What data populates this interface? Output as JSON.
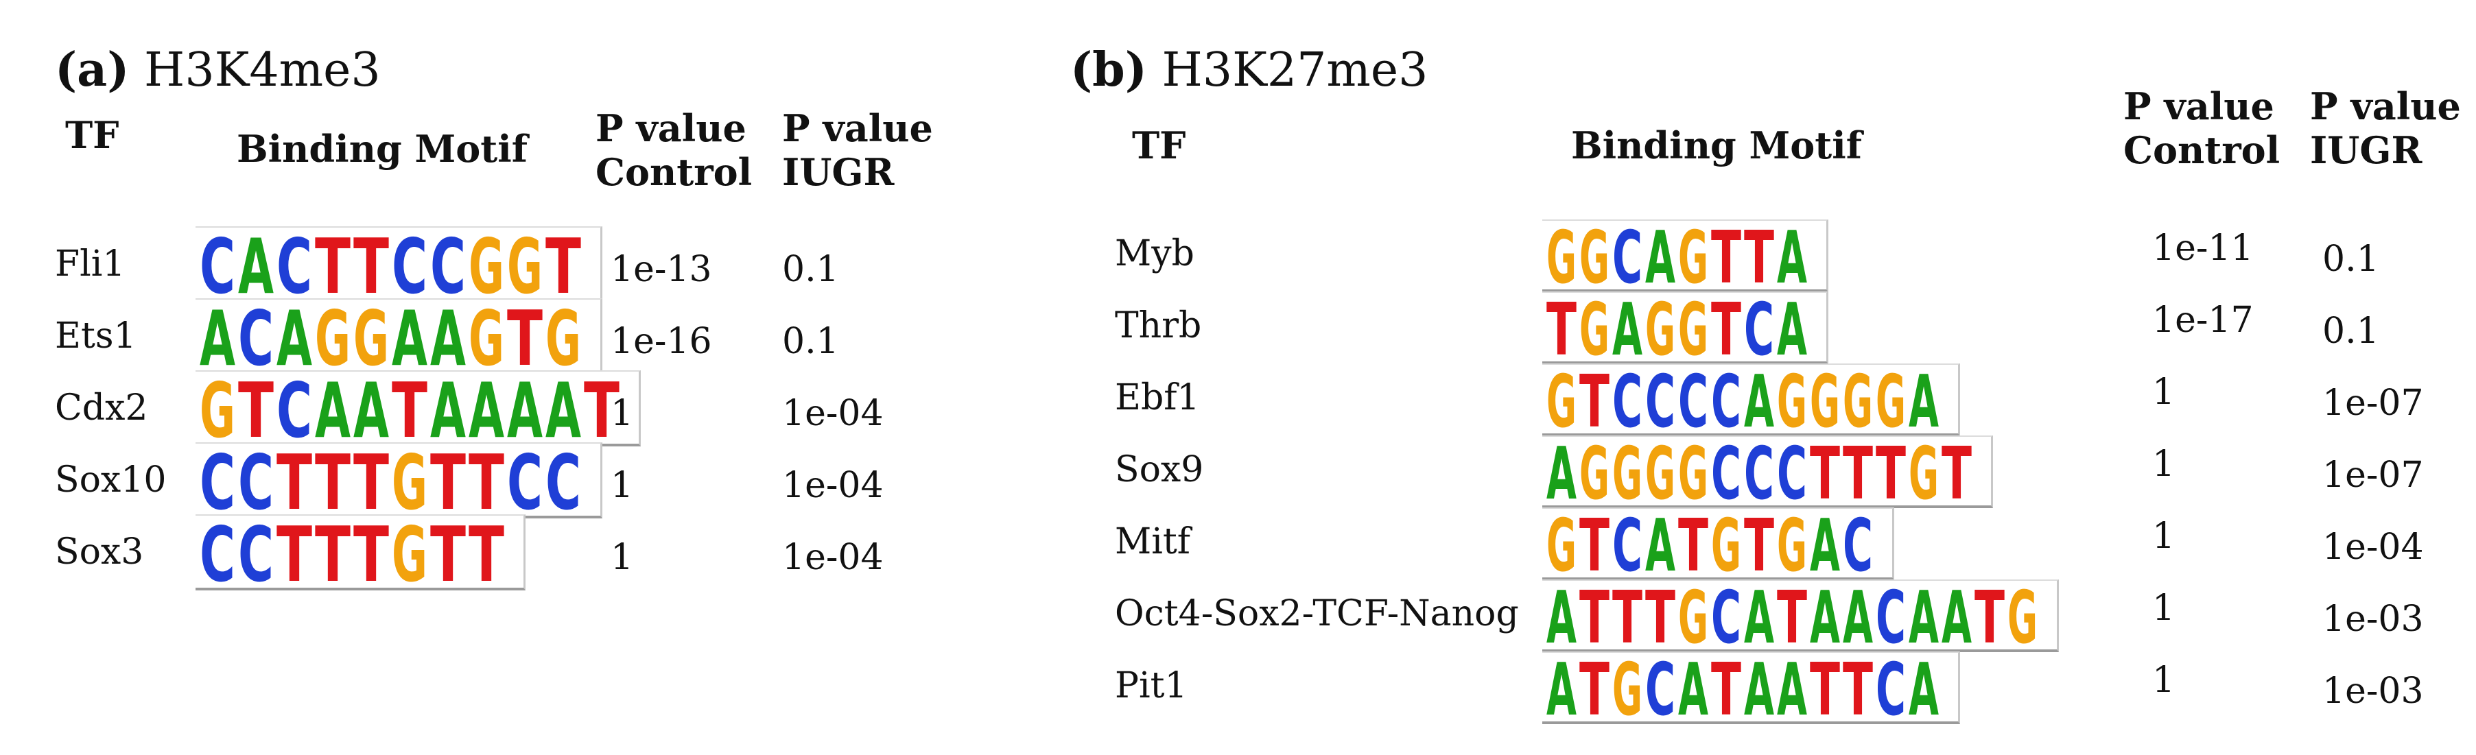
{
  "panel_a": {
    "label": "(a)",
    "title": "H3K4me3",
    "headers": {
      "tf": "TF",
      "motif": "Binding Motif",
      "p_control": [
        "P value",
        "Control"
      ],
      "p_iugr": [
        "P value",
        "IUGR"
      ]
    },
    "rows": [
      {
        "tf": "Fli1",
        "motif": "CACTTCCGGT",
        "p_control": "1e-13",
        "p_iugr": "0.1"
      },
      {
        "tf": "Ets1",
        "motif": "ACAGGAAGTG",
        "p_control": "1e-16",
        "p_iugr": "0.1"
      },
      {
        "tf": "Cdx2",
        "motif": "GTCAATAAAAT",
        "p_control": "1",
        "p_iugr": "1e-04"
      },
      {
        "tf": "Sox10",
        "motif": "CCTTTGTTCC",
        "p_control": "1",
        "p_iugr": "1e-04"
      },
      {
        "tf": "Sox3",
        "motif": "CCTTTGTT",
        "p_control": "1",
        "p_iugr": "1e-04"
      }
    ]
  },
  "panel_b": {
    "label": "(b)",
    "title": "H3K27me3",
    "headers": {
      "tf": "TF",
      "motif": "Binding Motif",
      "p_control": [
        "P value",
        "Control"
      ],
      "p_iugr": [
        "P value",
        "IUGR"
      ]
    },
    "rows": [
      {
        "tf": "Myb",
        "motif": "GGCAGTTA",
        "p_control": "1e-11",
        "p_iugr": "0.1"
      },
      {
        "tf": "Thrb",
        "motif": "TGAGGTCA",
        "p_control": "1e-17",
        "p_iugr": "0.1"
      },
      {
        "tf": "Ebf1",
        "motif": "GTCCCCAGGGGA",
        "p_control": "1",
        "p_iugr": "1e-07"
      },
      {
        "tf": "Sox9",
        "motif": "AGGGGCCCTTTGT",
        "p_control": "1",
        "p_iugr": "1e-07"
      },
      {
        "tf": "Mitf",
        "motif": "GTCATGTGAC",
        "p_control": "1",
        "p_iugr": "1e-04"
      },
      {
        "tf": "Oct4-Sox2-TCF-Nanog",
        "motif": "ATTTGCATAACAATG",
        "p_control": "1",
        "p_iugr": "1e-03"
      },
      {
        "tf": "Pit1",
        "motif": "ATGCATAATTCA",
        "p_control": "1",
        "p_iugr": "1e-03"
      }
    ]
  },
  "colors": {
    "A": "#1aa11a",
    "C": "#1f3fd6",
    "G": "#f2a20d",
    "T": "#e0161b"
  }
}
